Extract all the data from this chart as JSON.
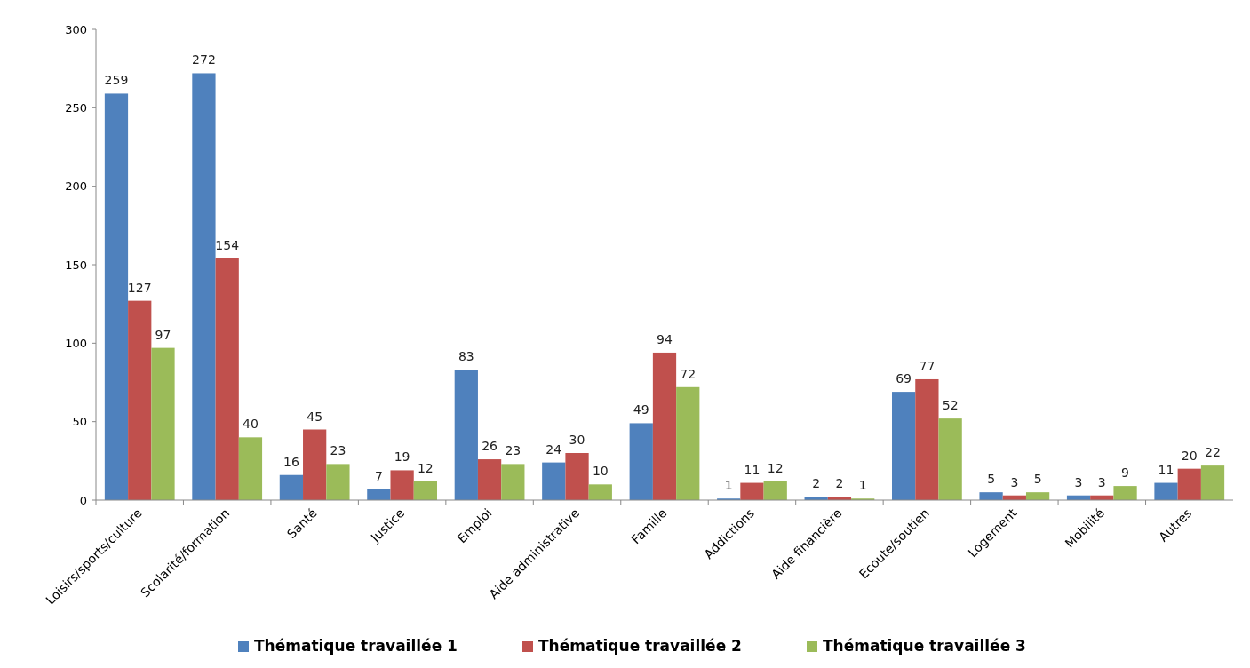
{
  "chart_data": {
    "type": "bar",
    "categories": [
      "Loisirs/sports/culture",
      "Scolarité/formation",
      "Santé",
      "Justice",
      "Emploi",
      "Aide administrative",
      "Famille",
      "Addictions",
      "Aide financière",
      "Ecoute/soutien",
      "Logement",
      "Mobilité",
      "Autres"
    ],
    "series": [
      {
        "name": "Thématique travaillée 1",
        "color": "#4f81bd",
        "values": [
          259,
          272,
          16,
          7,
          83,
          24,
          49,
          1,
          2,
          69,
          5,
          3,
          11
        ]
      },
      {
        "name": "Thématique travaillée 2",
        "color": "#c0504d",
        "values": [
          127,
          154,
          45,
          19,
          26,
          30,
          94,
          11,
          2,
          77,
          3,
          3,
          20
        ]
      },
      {
        "name": "Thématique travaillée 3",
        "color": "#9bbb59",
        "values": [
          97,
          40,
          23,
          12,
          23,
          10,
          72,
          12,
          1,
          52,
          5,
          9,
          22
        ]
      }
    ],
    "ylim": [
      0,
      300
    ],
    "yticks": [
      0,
      50,
      100,
      150,
      200,
      250,
      300
    ],
    "grid": false,
    "legend": "bottom",
    "data_labels": true
  }
}
